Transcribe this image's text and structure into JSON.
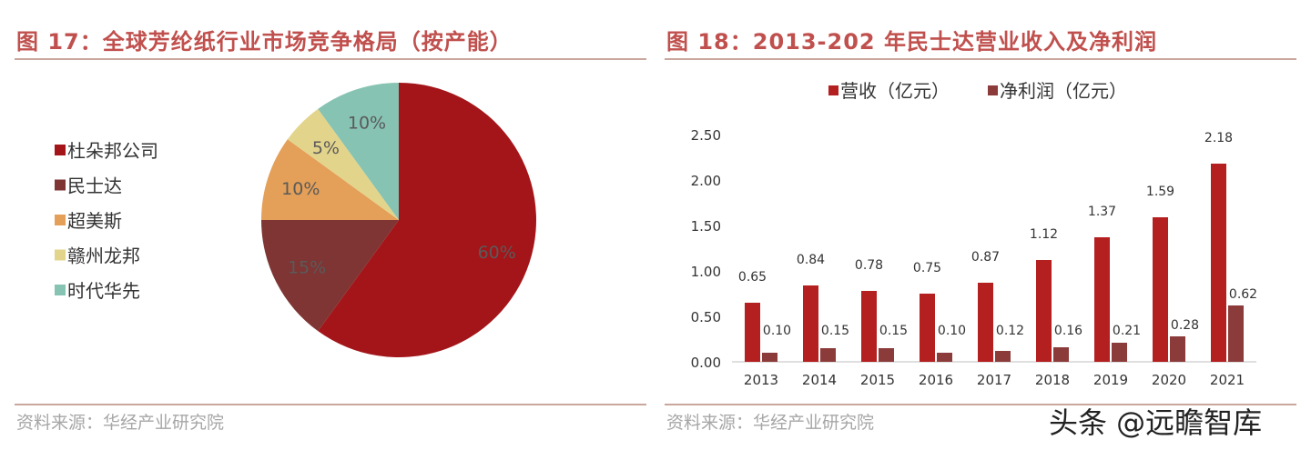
{
  "left": {
    "title": "图 17：全球芳纶纸行业市场竞争格局（按产能）",
    "source": "资料来源：华经产业研究院"
  },
  "right": {
    "title": "图 18：2013-202 年民士达营业收入及净利润",
    "source": "资料来源：华经产业研究院"
  },
  "watermark": "头条 @远瞻智库",
  "chart_data": [
    {
      "type": "pie",
      "title": "全球芳纶纸行业市场竞争格局（按产能）",
      "legend_position": "left",
      "slices": [
        {
          "label": "杜朵邦公司",
          "value": 60,
          "value_label": "60%",
          "color": "#a31519"
        },
        {
          "label": "民士达",
          "value": 15,
          "value_label": "15%",
          "color": "#7e3533"
        },
        {
          "label": "超美斯",
          "value": 10,
          "value_label": "10%",
          "color": "#e49f58"
        },
        {
          "label": "赣州龙邦",
          "value": 5,
          "value_label": "5%",
          "color": "#e3d48c"
        },
        {
          "label": "时代华先",
          "value": 10,
          "value_label": "10%",
          "color": "#86c3b2"
        }
      ]
    },
    {
      "type": "bar",
      "title": "2013-202 年民士达营业收入及净利润",
      "legend_position": "top",
      "categories": [
        "2013",
        "2014",
        "2015",
        "2016",
        "2017",
        "2018",
        "2019",
        "2020",
        "2021"
      ],
      "series": [
        {
          "name": "营收（亿元）",
          "color": "#b41f20",
          "values": [
            0.65,
            0.84,
            0.78,
            0.75,
            0.87,
            1.12,
            1.37,
            1.59,
            2.18
          ],
          "labels": [
            "0.65",
            "0.84",
            "0.78",
            "0.75",
            "0.87",
            "1.12",
            "1.37",
            "1.59",
            "2.18"
          ]
        },
        {
          "name": "净利润（亿元）",
          "color": "#8a3b3a",
          "values": [
            0.1,
            0.15,
            0.15,
            0.1,
            0.12,
            0.16,
            0.21,
            0.28,
            0.62
          ],
          "labels": [
            "0.10",
            "0.15",
            "0.15",
            "0.10",
            "0.12",
            "0.16",
            "0.21",
            "0.28",
            "0.62"
          ]
        }
      ],
      "ylim": [
        0,
        2.5
      ],
      "yticks": [
        "0.00",
        "0.50",
        "1.00",
        "1.50",
        "2.00",
        "2.50"
      ],
      "grid": false
    }
  ]
}
